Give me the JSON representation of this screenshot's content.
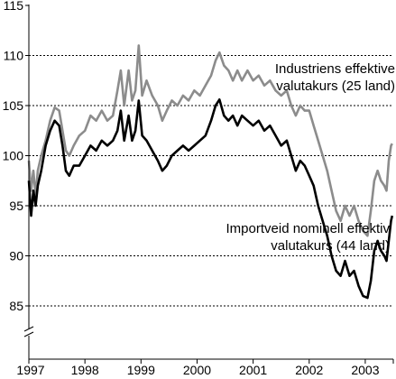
{
  "chart_data": {
    "type": "line",
    "title": "",
    "xlabel": "",
    "ylabel": "",
    "ylim": [
      80,
      115
    ],
    "xlim": [
      1997.0,
      2003.5
    ],
    "yticks": [
      85,
      90,
      95,
      100,
      105,
      110,
      115
    ],
    "xtick_labels": [
      "1997",
      "1998",
      "1999",
      "2000",
      "2001",
      "2002",
      "2003"
    ],
    "grid": true,
    "axis_break": true,
    "series": [
      {
        "name": "Industriens effektive valutakurs (25 land)",
        "color": "#8c8c8c",
        "points": [
          [
            1997.0,
            99.5
          ],
          [
            1997.04,
            96.5
          ],
          [
            1997.08,
            98.5
          ],
          [
            1997.12,
            96.0
          ],
          [
            1997.16,
            98.5
          ],
          [
            1997.22,
            100.0
          ],
          [
            1997.3,
            101.5
          ],
          [
            1997.38,
            103.5
          ],
          [
            1997.46,
            104.8
          ],
          [
            1997.54,
            104.5
          ],
          [
            1997.6,
            102.5
          ],
          [
            1997.66,
            100.5
          ],
          [
            1997.72,
            100.0
          ],
          [
            1997.8,
            101.0
          ],
          [
            1997.9,
            102.0
          ],
          [
            1998.0,
            102.5
          ],
          [
            1998.1,
            104.0
          ],
          [
            1998.2,
            103.5
          ],
          [
            1998.3,
            104.5
          ],
          [
            1998.4,
            103.5
          ],
          [
            1998.5,
            104.0
          ],
          [
            1998.58,
            106.5
          ],
          [
            1998.64,
            108.5
          ],
          [
            1998.7,
            105.0
          ],
          [
            1998.78,
            108.5
          ],
          [
            1998.84,
            105.5
          ],
          [
            1998.9,
            106.5
          ],
          [
            1998.96,
            111.0
          ],
          [
            1999.02,
            106.0
          ],
          [
            1999.1,
            107.5
          ],
          [
            1999.2,
            106.0
          ],
          [
            1999.3,
            105.0
          ],
          [
            1999.38,
            103.5
          ],
          [
            1999.46,
            104.5
          ],
          [
            1999.55,
            105.5
          ],
          [
            1999.65,
            105.0
          ],
          [
            1999.75,
            106.0
          ],
          [
            1999.85,
            105.5
          ],
          [
            1999.95,
            106.5
          ],
          [
            2000.05,
            106.0
          ],
          [
            2000.15,
            107.0
          ],
          [
            2000.25,
            108.0
          ],
          [
            2000.33,
            109.5
          ],
          [
            2000.4,
            110.3
          ],
          [
            2000.48,
            109.0
          ],
          [
            2000.56,
            108.5
          ],
          [
            2000.64,
            107.5
          ],
          [
            2000.72,
            108.5
          ],
          [
            2000.8,
            107.5
          ],
          [
            2000.9,
            108.5
          ],
          [
            2001.0,
            107.5
          ],
          [
            2001.1,
            108.0
          ],
          [
            2001.2,
            107.0
          ],
          [
            2001.3,
            107.5
          ],
          [
            2001.4,
            106.5
          ],
          [
            2001.5,
            106.0
          ],
          [
            2001.6,
            106.5
          ],
          [
            2001.68,
            105.0
          ],
          [
            2001.76,
            104.0
          ],
          [
            2001.84,
            105.0
          ],
          [
            2001.92,
            104.5
          ],
          [
            2002.0,
            104.5
          ],
          [
            2002.08,
            103.0
          ],
          [
            2002.16,
            101.5
          ],
          [
            2002.24,
            100.0
          ],
          [
            2002.32,
            98.5
          ],
          [
            2002.4,
            96.5
          ],
          [
            2002.48,
            94.5
          ],
          [
            2002.56,
            93.5
          ],
          [
            2002.64,
            95.0
          ],
          [
            2002.72,
            94.0
          ],
          [
            2002.8,
            95.0
          ],
          [
            2002.88,
            93.5
          ],
          [
            2002.96,
            92.5
          ],
          [
            2003.04,
            92.0
          ],
          [
            2003.1,
            94.5
          ],
          [
            2003.16,
            97.5
          ],
          [
            2003.22,
            98.5
          ],
          [
            2003.28,
            97.5
          ],
          [
            2003.34,
            97.0
          ],
          [
            2003.38,
            96.5
          ],
          [
            2003.42,
            99.5
          ],
          [
            2003.46,
            101.0
          ],
          [
            2003.48,
            101.2
          ]
        ]
      },
      {
        "name": "Importveid nominell effektiv valutakurs (44 land)",
        "color": "#000000",
        "points": [
          [
            1997.0,
            97.5
          ],
          [
            1997.04,
            94.0
          ],
          [
            1997.08,
            96.5
          ],
          [
            1997.12,
            95.0
          ],
          [
            1997.16,
            97.0
          ],
          [
            1997.22,
            98.5
          ],
          [
            1997.3,
            101.0
          ],
          [
            1997.38,
            102.5
          ],
          [
            1997.46,
            103.5
          ],
          [
            1997.54,
            103.0
          ],
          [
            1997.6,
            101.0
          ],
          [
            1997.66,
            98.5
          ],
          [
            1997.72,
            98.0
          ],
          [
            1997.8,
            99.0
          ],
          [
            1997.9,
            99.0
          ],
          [
            1998.0,
            100.0
          ],
          [
            1998.1,
            101.0
          ],
          [
            1998.2,
            100.5
          ],
          [
            1998.3,
            101.5
          ],
          [
            1998.4,
            101.0
          ],
          [
            1998.5,
            101.5
          ],
          [
            1998.58,
            102.5
          ],
          [
            1998.64,
            104.5
          ],
          [
            1998.7,
            101.5
          ],
          [
            1998.78,
            104.0
          ],
          [
            1998.84,
            101.5
          ],
          [
            1998.9,
            102.5
          ],
          [
            1998.96,
            105.5
          ],
          [
            1999.02,
            102.0
          ],
          [
            1999.1,
            101.5
          ],
          [
            1999.2,
            100.5
          ],
          [
            1999.3,
            99.5
          ],
          [
            1999.38,
            98.5
          ],
          [
            1999.46,
            99.0
          ],
          [
            1999.55,
            100.0
          ],
          [
            1999.65,
            100.5
          ],
          [
            1999.75,
            101.0
          ],
          [
            1999.85,
            100.5
          ],
          [
            1999.95,
            101.0
          ],
          [
            2000.05,
            101.5
          ],
          [
            2000.15,
            102.0
          ],
          [
            2000.25,
            103.5
          ],
          [
            2000.33,
            105.0
          ],
          [
            2000.4,
            105.6
          ],
          [
            2000.48,
            104.0
          ],
          [
            2000.56,
            103.5
          ],
          [
            2000.64,
            104.0
          ],
          [
            2000.72,
            103.0
          ],
          [
            2000.8,
            104.0
          ],
          [
            2000.9,
            103.5
          ],
          [
            2001.0,
            103.0
          ],
          [
            2001.1,
            103.5
          ],
          [
            2001.2,
            102.5
          ],
          [
            2001.3,
            103.0
          ],
          [
            2001.4,
            102.0
          ],
          [
            2001.5,
            101.0
          ],
          [
            2001.6,
            101.5
          ],
          [
            2001.68,
            100.0
          ],
          [
            2001.76,
            98.5
          ],
          [
            2001.84,
            99.5
          ],
          [
            2001.92,
            99.0
          ],
          [
            2002.0,
            98.0
          ],
          [
            2002.08,
            97.0
          ],
          [
            2002.16,
            95.0
          ],
          [
            2002.24,
            93.5
          ],
          [
            2002.32,
            92.0
          ],
          [
            2002.4,
            90.0
          ],
          [
            2002.48,
            88.5
          ],
          [
            2002.56,
            88.0
          ],
          [
            2002.64,
            89.5
          ],
          [
            2002.72,
            88.0
          ],
          [
            2002.8,
            88.5
          ],
          [
            2002.88,
            87.0
          ],
          [
            2002.96,
            86.0
          ],
          [
            2003.04,
            85.8
          ],
          [
            2003.1,
            87.5
          ],
          [
            2003.16,
            90.5
          ],
          [
            2003.22,
            91.5
          ],
          [
            2003.28,
            90.5
          ],
          [
            2003.34,
            90.0
          ],
          [
            2003.38,
            89.5
          ],
          [
            2003.42,
            91.5
          ],
          [
            2003.46,
            93.5
          ],
          [
            2003.48,
            94.0
          ]
        ]
      }
    ],
    "annotations": [
      {
        "id": "upper",
        "lines": [
          "Industriens effektive",
          "valutakurs (25 land)"
        ]
      },
      {
        "id": "lower",
        "lines": [
          "Importveid nominell effektiv",
          "valutakurs (44 land)"
        ]
      }
    ]
  }
}
